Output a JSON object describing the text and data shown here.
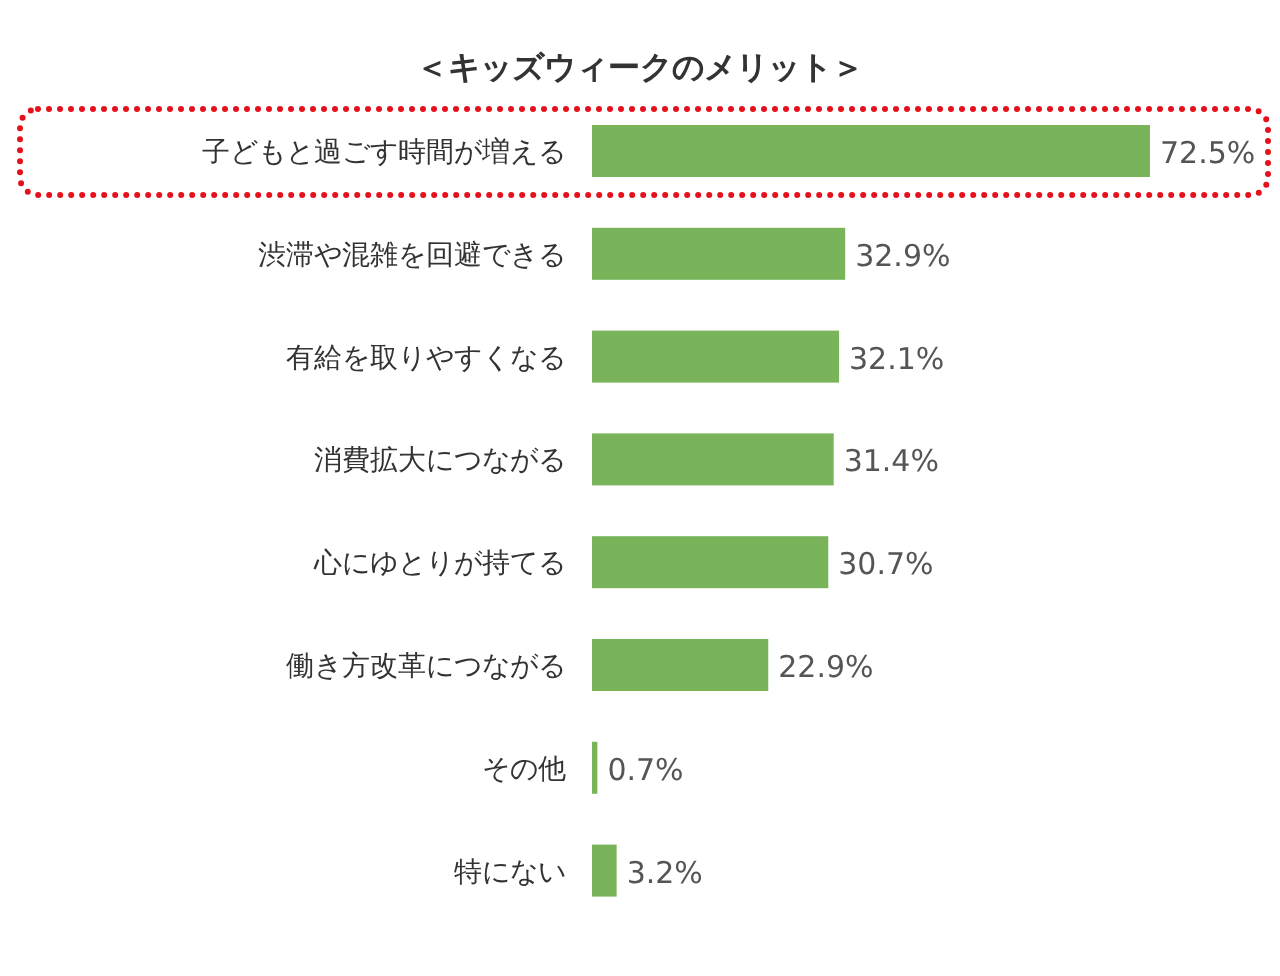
{
  "chart_data": {
    "type": "bar",
    "orientation": "horizontal",
    "title": "＜キッズウィークのメリット＞",
    "categories": [
      "子どもと過ごす時間が増える",
      "渋滞や混雑を回避できる",
      "有給を取りやすくなる",
      "消費拡大につながる",
      "心にゆとりが持てる",
      "働き方改革につながる",
      "その他",
      "特にない"
    ],
    "values": [
      72.5,
      32.9,
      32.1,
      31.4,
      30.7,
      22.9,
      0.7,
      3.2
    ],
    "value_labels": [
      "72.5%",
      "32.9%",
      "32.1%",
      "31.4%",
      "30.7%",
      "22.9%",
      "0.7%",
      "3.2%"
    ],
    "color": "#79b45a"
  }
}
